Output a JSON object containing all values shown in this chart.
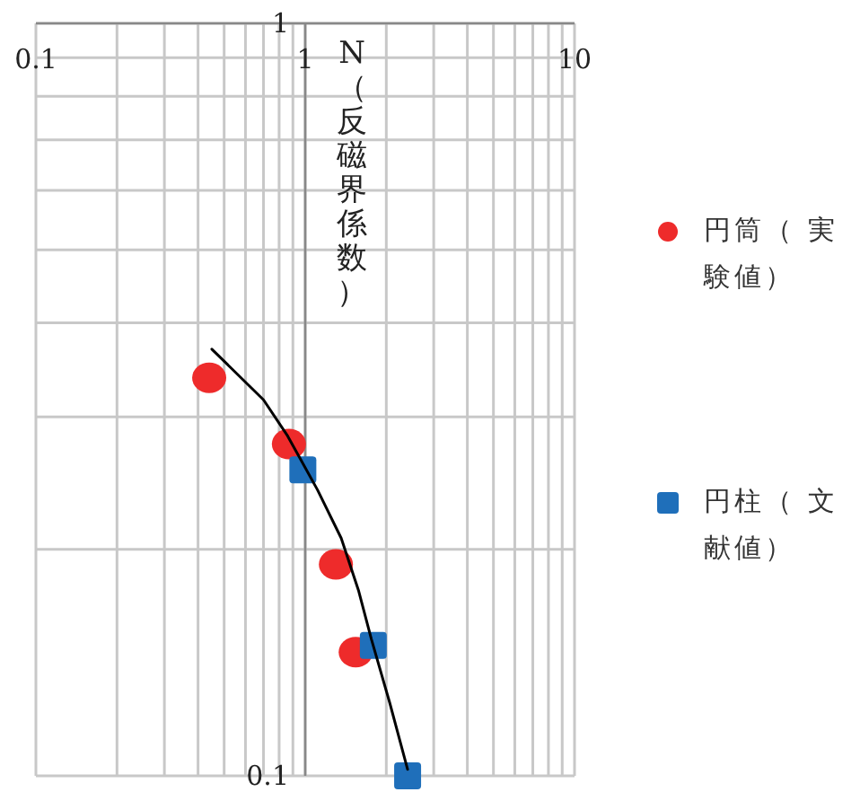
{
  "chart_data": {
    "type": "scatter",
    "ylabel": "N（反磁界係数）",
    "log": "xy",
    "grid": true,
    "legend": "right",
    "xlim": [
      0.1,
      10
    ],
    "ylim": [
      0.1,
      1
    ],
    "xticks": [
      0.1,
      {
        "value": 0.2,
        "label": null
      },
      {
        "value": 0.3,
        "label": null
      },
      {
        "value": 0.4,
        "label": null
      },
      {
        "value": 0.5,
        "label": null
      },
      {
        "value": 0.6,
        "label": null
      },
      {
        "value": 0.7,
        "label": null
      },
      {
        "value": 0.8,
        "label": null
      },
      {
        "value": 0.9,
        "label": null
      },
      1,
      {
        "value": 2,
        "label": null
      },
      {
        "value": 3,
        "label": null
      },
      {
        "value": 4,
        "label": null
      },
      {
        "value": 5,
        "label": null
      },
      {
        "value": 6,
        "label": null
      },
      {
        "value": 7,
        "label": null
      },
      {
        "value": 8,
        "label": null
      },
      {
        "value": 9,
        "label": null
      },
      10
    ],
    "yticks": [
      0.1,
      {
        "value": 0.2,
        "label": null
      },
      {
        "value": 0.3,
        "label": null
      },
      {
        "value": 0.4,
        "label": null
      },
      {
        "value": 0.5,
        "label": null
      },
      {
        "value": 0.6,
        "label": null
      },
      {
        "value": 0.7,
        "label": null
      },
      {
        "value": 0.8,
        "label": null
      },
      {
        "value": 0.9,
        "label": null
      },
      1
    ],
    "series": [
      {
        "name": "円筒（ 実験値）",
        "type": "scatter",
        "marker": "circle",
        "color": "#ee2b2b",
        "x": [
          0.44,
          0.87,
          1.3,
          1.54
        ],
        "values": [
          0.338,
          0.276,
          0.191,
          0.146
        ]
      },
      {
        "name": "円柱（ 文献値）",
        "type": "scatter",
        "marker": "square",
        "color": "#1f6fba",
        "x": [
          0.98,
          1.79,
          2.4
        ],
        "values": [
          0.255,
          0.149,
          0.1
        ]
      },
      {
        "type": "line",
        "marker": "none",
        "line_style": "solid",
        "color": "#000000",
        "x": [
          0.45,
          0.7,
          0.86,
          1.11,
          1.36,
          1.58,
          1.76,
          2.06,
          2.4
        ],
        "values": [
          0.369,
          0.316,
          0.283,
          0.24,
          0.207,
          0.176,
          0.152,
          0.125,
          0.102
        ]
      }
    ]
  }
}
